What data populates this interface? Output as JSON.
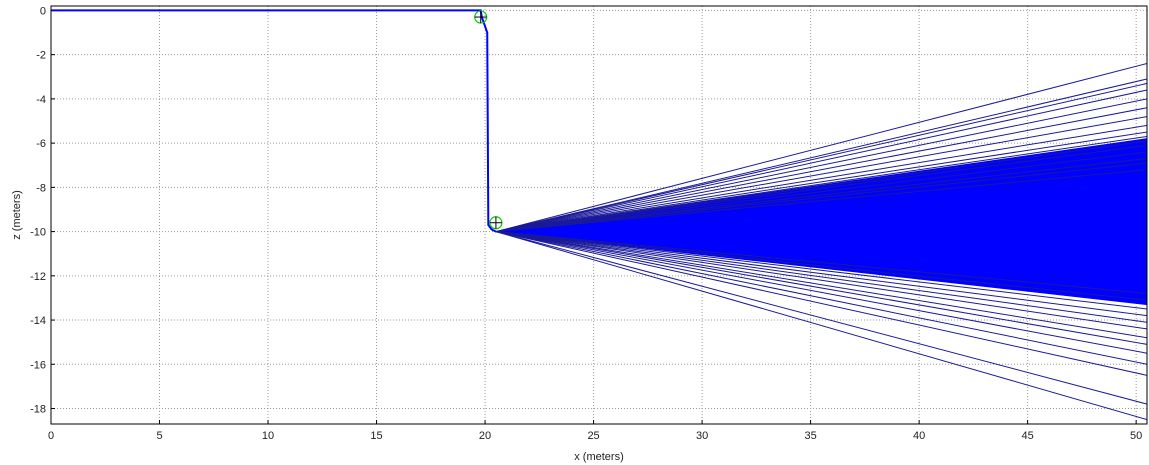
{
  "chart_data": {
    "type": "line",
    "title": "",
    "xlabel": "x (meters)",
    "ylabel": "z (meters)",
    "xlim": [
      0,
      50.5
    ],
    "ylim": [
      -18.7,
      0.2
    ],
    "xticks": [
      0,
      5,
      10,
      15,
      20,
      25,
      30,
      35,
      40,
      45,
      50
    ],
    "yticks": [
      0,
      -2,
      -4,
      -6,
      -8,
      -10,
      -12,
      -14,
      -16,
      -18
    ],
    "grid": true,
    "grid_style": "dotted",
    "line_color": "#0000ff",
    "marker_color": "#00cc00",
    "series": [
      {
        "values_note_free": true,
        "x": [
          0,
          19.8,
          19.85,
          20.1,
          20.15,
          20.3,
          20.5
        ],
        "y": [
          0,
          0,
          -0.3,
          -1.0,
          -9.7,
          -9.9,
          -10.0
        ]
      }
    ],
    "fan_origin": {
      "x": 20.5,
      "y": -10.0
    },
    "fan_end_x": 50.5,
    "fan_rays_y": [
      -2.4,
      -3.1,
      -3.3,
      -3.6,
      -4.0,
      -4.4,
      -4.8,
      -5.2,
      -5.5,
      -5.7,
      -5.9,
      -6.1,
      -6.4,
      -6.7,
      -6.9,
      -7.2,
      -12.8,
      -13.1,
      -13.5,
      -13.8,
      -14.1,
      -14.4,
      -14.8,
      -15.1,
      -15.5,
      -16.0,
      -16.5,
      -17.8,
      -18.5
    ],
    "fan_band": {
      "upper_y": -5.8,
      "lower_y": -13.3
    },
    "markers": [
      {
        "x": 19.8,
        "y": -0.3
      },
      {
        "x": 20.5,
        "y": -9.6
      }
    ]
  }
}
